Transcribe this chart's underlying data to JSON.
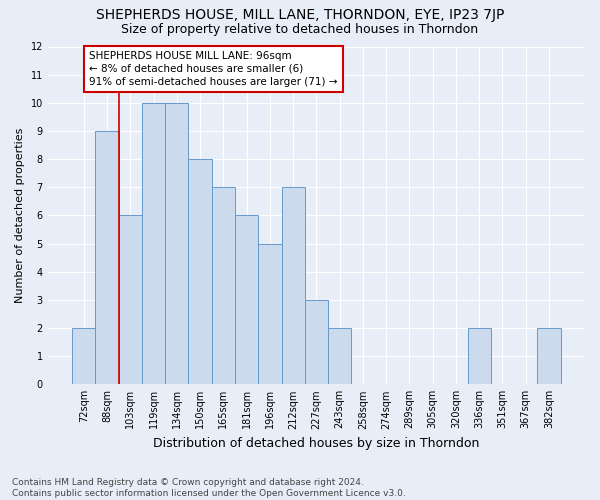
{
  "title1": "SHEPHERDS HOUSE, MILL LANE, THORNDON, EYE, IP23 7JP",
  "title2": "Size of property relative to detached houses in Thorndon",
  "xlabel": "Distribution of detached houses by size in Thorndon",
  "ylabel": "Number of detached properties",
  "categories": [
    "72sqm",
    "88sqm",
    "103sqm",
    "119sqm",
    "134sqm",
    "150sqm",
    "165sqm",
    "181sqm",
    "196sqm",
    "212sqm",
    "227sqm",
    "243sqm",
    "258sqm",
    "274sqm",
    "289sqm",
    "305sqm",
    "320sqm",
    "336sqm",
    "351sqm",
    "367sqm",
    "382sqm"
  ],
  "values": [
    2,
    9,
    6,
    10,
    10,
    8,
    7,
    6,
    5,
    7,
    3,
    2,
    0,
    0,
    0,
    0,
    0,
    2,
    0,
    0,
    2
  ],
  "bar_color": "#ccdaee",
  "bar_edge_color": "#6699cc",
  "subject_line_color": "#cc0000",
  "annotation_text": "SHEPHERDS HOUSE MILL LANE: 96sqm\n← 8% of detached houses are smaller (6)\n91% of semi-detached houses are larger (71) →",
  "annotation_box_color": "#ffffff",
  "annotation_box_edge": "#cc0000",
  "ylim": [
    0,
    12
  ],
  "yticks": [
    0,
    1,
    2,
    3,
    4,
    5,
    6,
    7,
    8,
    9,
    10,
    11,
    12
  ],
  "footnote": "Contains HM Land Registry data © Crown copyright and database right 2024.\nContains public sector information licensed under the Open Government Licence v3.0.",
  "bg_color": "#e8eef8",
  "grid_color": "#ffffff",
  "title1_fontsize": 10,
  "title2_fontsize": 9,
  "xlabel_fontsize": 9,
  "ylabel_fontsize": 8,
  "tick_fontsize": 7,
  "footnote_fontsize": 6.5,
  "annotation_fontsize": 7.5
}
